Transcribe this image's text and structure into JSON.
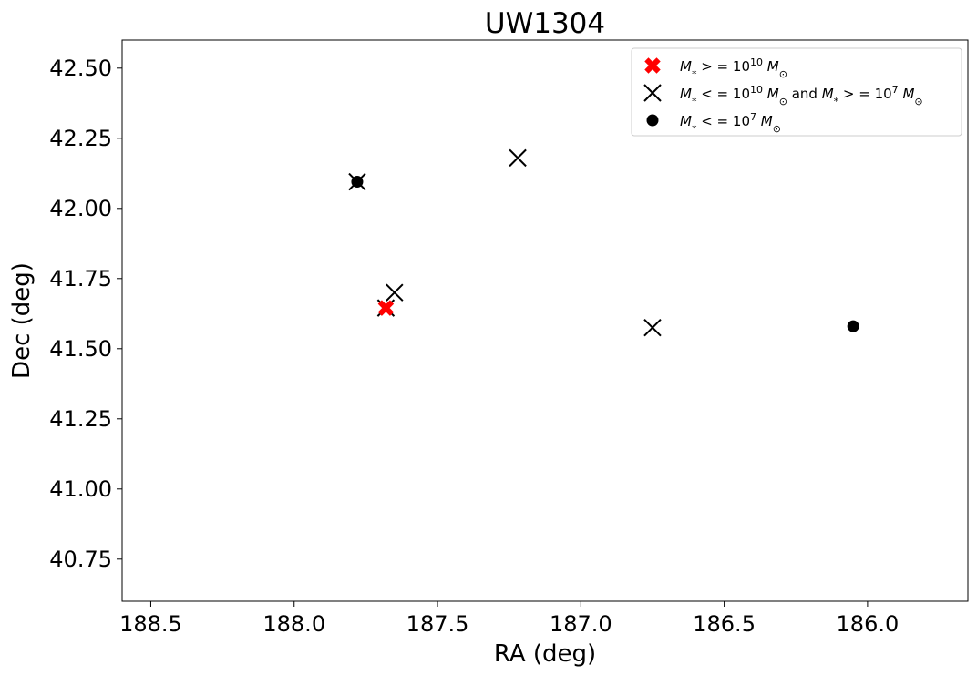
{
  "chart_data": {
    "type": "scatter",
    "title": "UW1304",
    "xlabel": "RA (deg)",
    "ylabel": "Dec (deg)",
    "xlim": [
      188.6,
      185.65
    ],
    "ylim": [
      40.6,
      42.6
    ],
    "x_inverted": true,
    "xticks": [
      188.5,
      188.0,
      187.5,
      187.0,
      186.5,
      186.0
    ],
    "xtick_labels": [
      "188.5",
      "188.0",
      "187.5",
      "187.0",
      "186.5",
      "186.0"
    ],
    "yticks": [
      40.75,
      41.0,
      41.25,
      41.5,
      41.75,
      42.0,
      42.25,
      42.5
    ],
    "ytick_labels": [
      "40.75",
      "41.00",
      "41.25",
      "41.50",
      "41.75",
      "42.00",
      "42.25",
      "42.50"
    ],
    "grid": false,
    "legend_position": "top-right",
    "series": [
      {
        "name": "M* >= 10^10 M_sun",
        "legend_label_parts": {
          "lhs": "M",
          "sub": "*",
          "op": " > = 10",
          "exp": "10",
          "rhs": " M",
          "rhs_sub": "⊙"
        },
        "marker": "X-filled",
        "color": "#ff0000",
        "points": [
          {
            "x": 187.68,
            "y": 41.645
          }
        ]
      },
      {
        "name": "M* <= 10^10 M_sun and M* >= 10^7 M_sun",
        "marker": "x",
        "color": "#000000",
        "points": [
          {
            "x": 187.78,
            "y": 42.095
          },
          {
            "x": 187.65,
            "y": 41.7
          },
          {
            "x": 187.68,
            "y": 41.645
          },
          {
            "x": 187.22,
            "y": 42.18
          },
          {
            "x": 186.75,
            "y": 41.575
          }
        ]
      },
      {
        "name": "M* <= 10^7 M_sun",
        "marker": "circle",
        "color": "#000000",
        "points": [
          {
            "x": 187.78,
            "y": 42.095
          },
          {
            "x": 186.05,
            "y": 41.58
          }
        ]
      }
    ]
  }
}
